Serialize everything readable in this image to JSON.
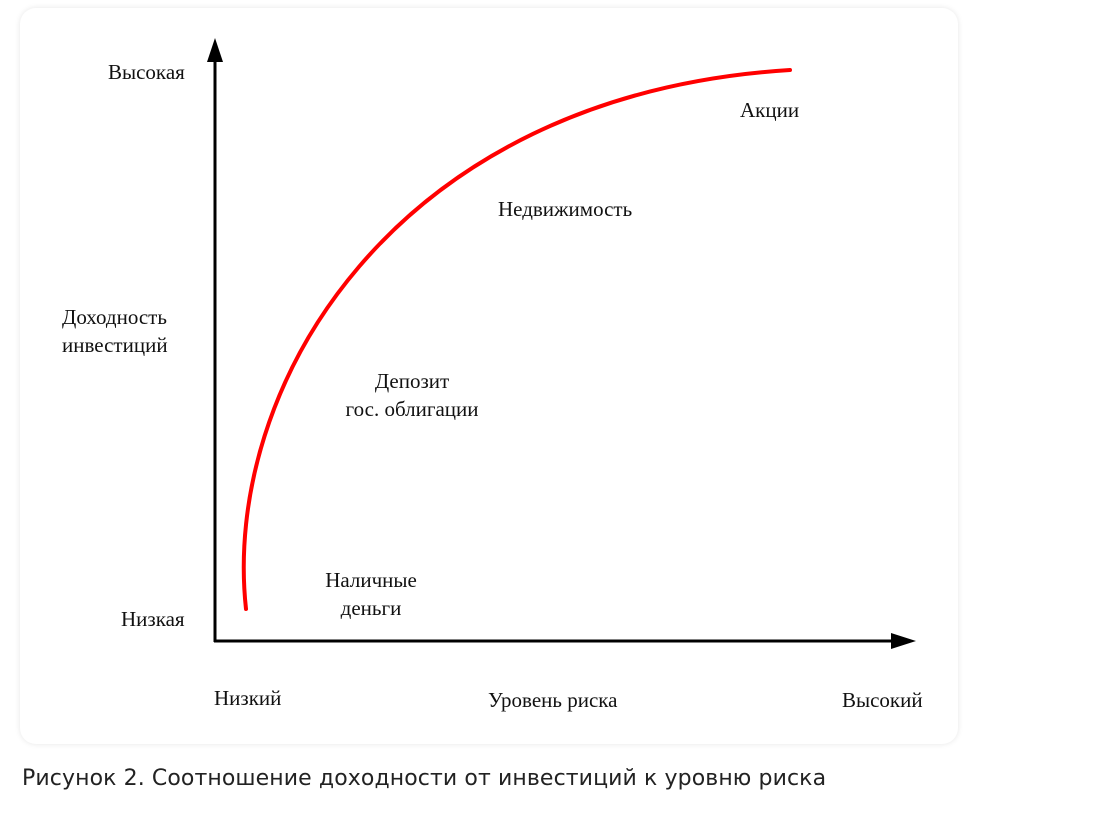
{
  "diagram": {
    "y_axis": {
      "high_label": "Высокая",
      "low_label": "Низкая",
      "title_line1": "Доходность",
      "title_line2": "инвестиций"
    },
    "x_axis": {
      "low_label": "Низкий",
      "high_label": "Высокий",
      "title": "Уровень риска"
    },
    "curve_color": "#ff0000",
    "assets": {
      "cash_line1": "Наличные",
      "cash_line2": "деньги",
      "deposit_line1": "Депозит",
      "deposit_line2": "гос. облигации",
      "real_estate": "Недвижимость",
      "stocks": "Акции"
    }
  },
  "caption": "Рисунок 2. Соотношение доходности от инвестиций к уровню риска"
}
